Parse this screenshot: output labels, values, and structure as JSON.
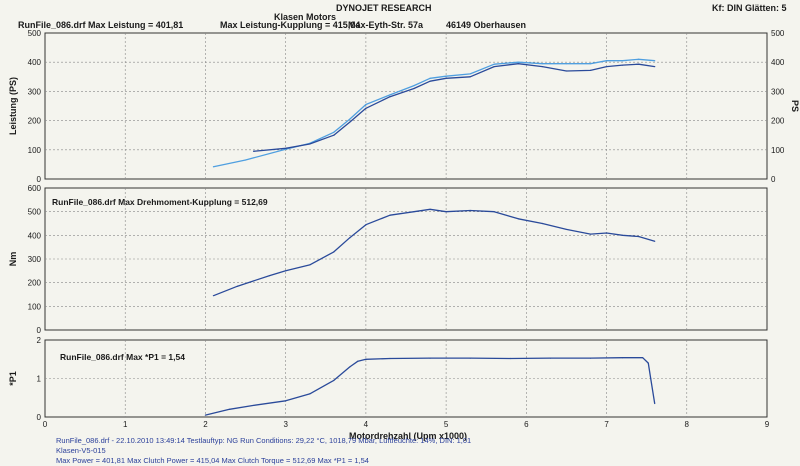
{
  "header": {
    "brand": "DYNOJET RESEARCH",
    "info_left": "RunFile_086.drf Max Leistung = 401,81",
    "info_mid": "Max Leistung-Kupplung = 415,04",
    "company": "Klasen Motors",
    "address": "Max-Eyth-Str. 57a",
    "city": "46149 Oberhausen",
    "settings": "Kf: DIN  Glätten: 5"
  },
  "footer": {
    "line1": "RunFile_086.drf - 22.10.2010 13:49:14  Testlauftyp: NG  Run Conditions: 29,22 °C, 1018,79 Mbar,  Luftfeuchte: 14%, DIN: 1,01",
    "line2": "Klasen-V5-015",
    "line3": "Max Power = 401,81  Max Clutch Power = 415,04  Max Clutch Torque = 512,69  Max *P1 = 1,54"
  },
  "colors": {
    "line_dark": "#2a4a9a",
    "line_light": "#4f9fe0",
    "grid": "#888888",
    "frame": "#333333"
  },
  "chart_data": [
    {
      "type": "line",
      "title": "",
      "xlabel": "Motordrehzahl (Upm x1000)",
      "ylabel": "Leistung (PS)",
      "ylabel_right": "PS",
      "xlim": [
        0,
        9
      ],
      "ylim": [
        0,
        500
      ],
      "yticks": [
        0,
        100,
        200,
        300,
        400,
        500
      ],
      "grid": true,
      "series": [
        {
          "x": [
            2.1,
            2.5,
            3.0,
            3.3,
            3.6,
            3.8,
            4.0,
            4.3,
            4.6,
            4.8,
            5.0,
            5.3,
            5.6,
            5.9,
            6.2,
            6.5,
            6.8,
            7.0,
            7.2,
            7.4,
            7.6
          ],
          "y": [
            42,
            65,
            102,
            122,
            160,
            205,
            255,
            288,
            320,
            345,
            352,
            360,
            393,
            400,
            395,
            395,
            395,
            405,
            405,
            410,
            405
          ]
        },
        {
          "x": [
            2.6,
            3.0,
            3.3,
            3.6,
            3.8,
            4.0,
            4.3,
            4.6,
            4.8,
            5.0,
            5.3,
            5.6,
            5.9,
            6.2,
            6.5,
            6.8,
            7.0,
            7.2,
            7.4,
            7.6
          ],
          "y": [
            95,
            105,
            120,
            150,
            195,
            242,
            282,
            310,
            335,
            345,
            350,
            385,
            395,
            385,
            370,
            372,
            385,
            390,
            393,
            385
          ]
        }
      ]
    },
    {
      "type": "line",
      "title": "RunFile_086.drf Max Drehmoment-Kupplung = 512,69",
      "xlabel": "",
      "ylabel": "Nm",
      "xlim": [
        0,
        9
      ],
      "ylim": [
        0,
        600
      ],
      "yticks": [
        0,
        100,
        200,
        300,
        400,
        500,
        600
      ],
      "grid": true,
      "series": [
        {
          "x": [
            2.1,
            2.4,
            2.8,
            3.0,
            3.3,
            3.6,
            3.8,
            4.0,
            4.3,
            4.6,
            4.8,
            5.0,
            5.3,
            5.6,
            5.9,
            6.2,
            6.5,
            6.8,
            7.0,
            7.2,
            7.4,
            7.6
          ],
          "y": [
            145,
            185,
            230,
            250,
            275,
            330,
            390,
            445,
            485,
            500,
            510,
            500,
            505,
            500,
            470,
            450,
            425,
            405,
            410,
            400,
            395,
            375
          ]
        }
      ]
    },
    {
      "type": "line",
      "title": "RunFile_086.drf Max *P1 = 1,54",
      "xlabel": "",
      "ylabel": "*P1",
      "xlim": [
        0,
        9
      ],
      "ylim": [
        0,
        2
      ],
      "yticks": [
        0,
        1,
        2
      ],
      "xticks": [
        0,
        1,
        2,
        3,
        4,
        5,
        6,
        7,
        8,
        9
      ],
      "grid": true,
      "series": [
        {
          "x": [
            2.0,
            2.3,
            2.6,
            3.0,
            3.3,
            3.6,
            3.8,
            3.9,
            4.0,
            4.3,
            4.8,
            5.3,
            5.8,
            6.3,
            6.8,
            7.2,
            7.45,
            7.52,
            7.55,
            7.6
          ],
          "y": [
            0.05,
            0.2,
            0.3,
            0.42,
            0.6,
            0.95,
            1.3,
            1.45,
            1.5,
            1.52,
            1.53,
            1.53,
            1.52,
            1.53,
            1.53,
            1.54,
            1.54,
            1.4,
            1.0,
            0.35
          ]
        }
      ]
    }
  ]
}
